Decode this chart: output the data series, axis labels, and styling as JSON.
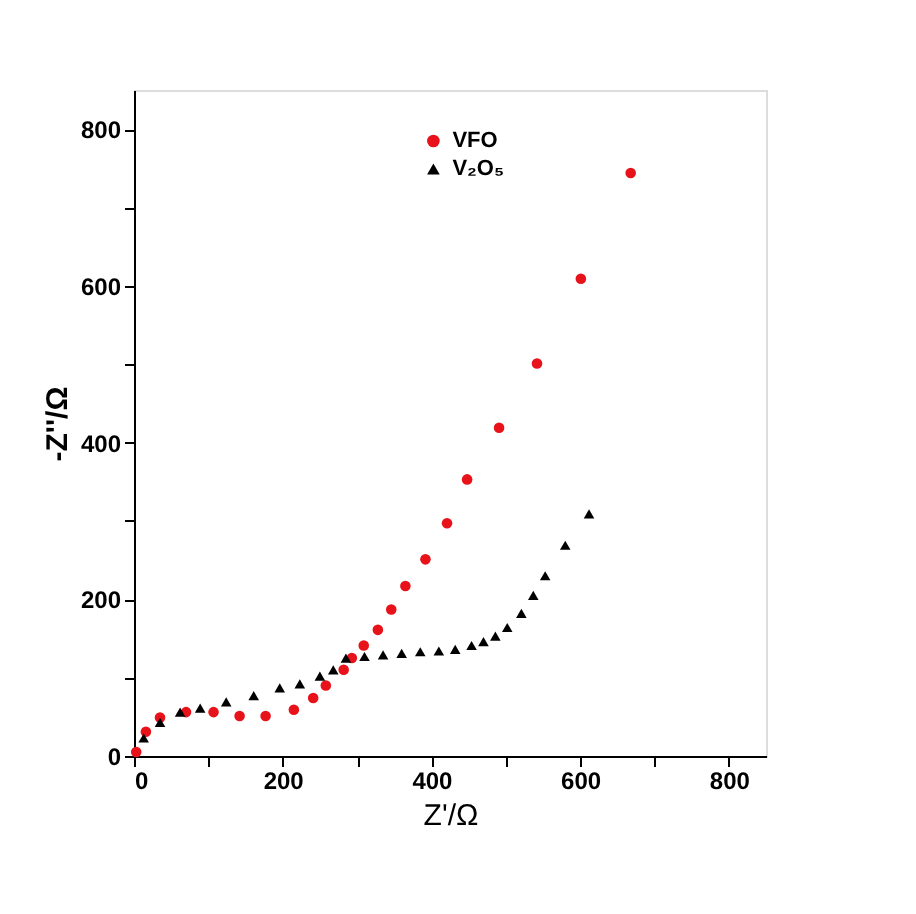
{
  "chart_data": {
    "type": "scatter",
    "xlabel": "Z'/Ω",
    "ylabel": "-Z''/Ω",
    "xlim": [
      0,
      850
    ],
    "ylim": [
      0,
      850
    ],
    "xticks": [
      0,
      {
        "value": 100,
        "label": null
      },
      200,
      {
        "value": 300,
        "label": null
      },
      400,
      {
        "value": 500,
        "label": null
      },
      600,
      {
        "value": 700,
        "label": null
      },
      800
    ],
    "yticks": [
      0,
      {
        "value": 100,
        "label": null
      },
      200,
      {
        "value": 300,
        "label": null
      },
      400,
      {
        "value": 500,
        "label": null
      },
      600,
      {
        "value": 700,
        "label": null
      },
      800
    ],
    "grid": false,
    "legend": "top",
    "series": [
      {
        "name": "VFO",
        "color": "#e8121a",
        "marker": "circle",
        "x": [
          3,
          16,
          35,
          70,
          107,
          142,
          177,
          215,
          241,
          258,
          282,
          293,
          309,
          328,
          346,
          365,
          392,
          421,
          448,
          491,
          542,
          601,
          668
        ],
        "values": [
          5,
          31,
          49,
          56,
          56,
          51,
          51,
          59,
          74,
          90,
          110,
          125,
          141,
          161,
          187,
          217,
          251,
          297,
          353,
          419,
          501,
          609,
          744
        ]
      },
      {
        "name": "V₂O₅",
        "color": "#000000",
        "marker": "triangle",
        "x": [
          13,
          35,
          62,
          89,
          124,
          161,
          196,
          223,
          250,
          268,
          285,
          310,
          335,
          360,
          385,
          410,
          432,
          454,
          470,
          486,
          502,
          521,
          537,
          553,
          580,
          612
        ],
        "values": [
          23,
          43,
          56,
          61,
          69,
          77,
          87,
          92,
          102,
          110,
          125,
          127,
          129,
          131,
          133,
          134,
          136,
          141,
          146,
          153,
          164,
          182,
          205,
          230,
          269,
          309
        ]
      }
    ]
  }
}
